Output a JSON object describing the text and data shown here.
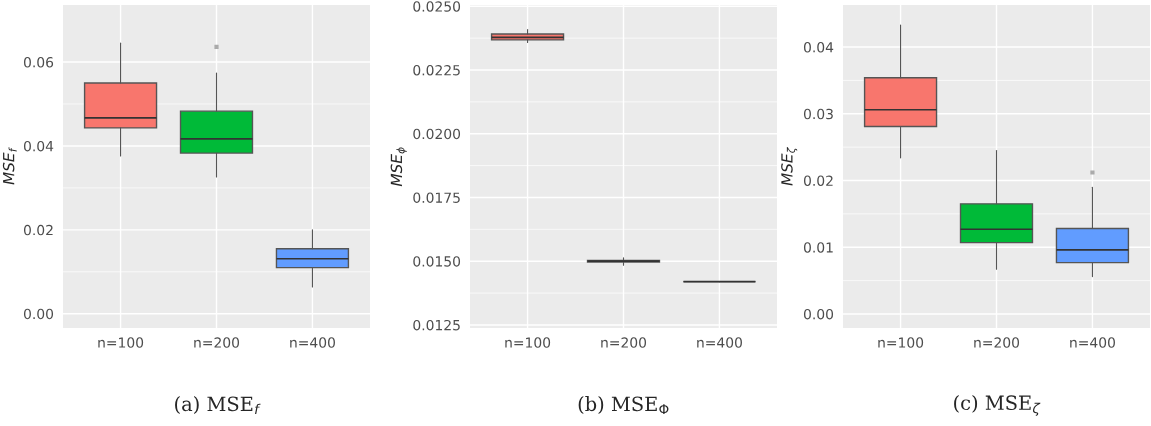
{
  "chart_data": [
    {
      "type": "box",
      "title": "(a) MSE$_{f}$",
      "ylabel": "MSE$_{f}$",
      "categories": [
        "n=100",
        "n=200",
        "n=400"
      ],
      "colors": [
        "#f8766d",
        "#00ba38",
        "#619cff"
      ],
      "boxes": [
        {
          "low": 0.0376,
          "q1": 0.0443,
          "median": 0.0467,
          "q3": 0.055,
          "high": 0.0645
        },
        {
          "low": 0.0326,
          "q1": 0.0383,
          "median": 0.0417,
          "q3": 0.0483,
          "high": 0.0574,
          "outliers": [
            0.0636
          ]
        },
        {
          "low": 0.0064,
          "q1": 0.011,
          "median": 0.0131,
          "q3": 0.0155,
          "high": 0.02
        }
      ],
      "ylim": [
        -0.0034,
        0.0736
      ],
      "yticks": [
        {
          "value": 0,
          "label": "0.00"
        },
        {
          "value": 0.02,
          "label": "0.02"
        },
        {
          "value": 0.04,
          "label": "0.04"
        },
        {
          "value": 0.06,
          "label": "0.06"
        }
      ],
      "grid": true,
      "legend": false
    },
    {
      "type": "box",
      "title": "(b) MSE$_{Φ}$",
      "ylabel": "MSE$_{ϕ}$",
      "categories": [
        "n=100",
        "n=200",
        "n=400"
      ],
      "colors": [
        "#f8766d",
        "#00ba38",
        "#555555"
      ],
      "boxes": [
        {
          "low": 0.02358,
          "q1": 0.02368,
          "median": 0.02378,
          "q3": 0.02391,
          "high": 0.02409
        },
        {
          "low": 0.01484,
          "q1": 0.01497,
          "median": 0.015,
          "q3": 0.01503,
          "high": 0.01513
        },
        {
          "low": 0.0142,
          "q1": 0.0142,
          "median": 0.0142,
          "q3": 0.0142,
          "high": 0.0142
        }
      ],
      "ylim": [
        0.01238,
        0.02505
      ],
      "yticks": [
        {
          "value": 0.0125,
          "label": "0.0125"
        },
        {
          "value": 0.015,
          "label": "0.0150"
        },
        {
          "value": 0.0175,
          "label": "0.0175"
        },
        {
          "value": 0.02,
          "label": "0.0200"
        },
        {
          "value": 0.0225,
          "label": "0.0225"
        },
        {
          "value": 0.025,
          "label": "0.0250"
        }
      ],
      "grid": true,
      "legend": false
    },
    {
      "type": "box",
      "title": "(c) MSE$_{ζ}$",
      "ylabel": "MSE$_{ζ}$",
      "categories": [
        "n=100",
        "n=200",
        "n=400"
      ],
      "colors": [
        "#f8766d",
        "#00ba38",
        "#619cff"
      ],
      "boxes": [
        {
          "low": 0.0234,
          "q1": 0.0281,
          "median": 0.0306,
          "q3": 0.0354,
          "high": 0.0433
        },
        {
          "low": 0.0067,
          "q1": 0.0107,
          "median": 0.0127,
          "q3": 0.0165,
          "high": 0.0245
        },
        {
          "low": 0.0056,
          "q1": 0.0077,
          "median": 0.0096,
          "q3": 0.0128,
          "high": 0.019,
          "outliers": [
            0.0212
          ]
        }
      ],
      "ylim": [
        -0.0021,
        0.0463
      ],
      "yticks": [
        {
          "value": 0,
          "label": "0.00"
        },
        {
          "value": 0.01,
          "label": "0.01"
        },
        {
          "value": 0.02,
          "label": "0.02"
        },
        {
          "value": 0.03,
          "label": "0.03"
        },
        {
          "value": 0.04,
          "label": "0.04"
        }
      ],
      "grid": true,
      "legend": false
    }
  ]
}
